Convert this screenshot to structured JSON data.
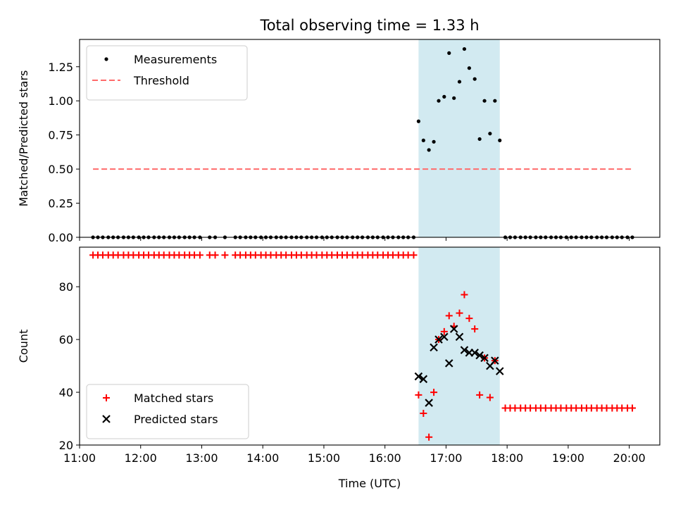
{
  "figure_title": "Total observing time = 1.33 h",
  "colors": {
    "shade": "#add8e6",
    "measurements": "#000000",
    "threshold": "#ff6b6b",
    "matched": "#ff0000",
    "predicted": "#000000"
  },
  "chart_data": [
    {
      "type": "scatter",
      "ylabel": "Matched/Predicted stars",
      "xlabel": "",
      "xlim": [
        11.0,
        20.5
      ],
      "ylim": [
        0,
        1.45
      ],
      "x_ticks": [
        "11:00",
        "12:00",
        "13:00",
        "14:00",
        "15:00",
        "16:00",
        "17:00",
        "18:00",
        "19:00",
        "20:00"
      ],
      "y_ticks": [
        "0.00",
        "0.25",
        "0.50",
        "0.75",
        "1.00",
        "1.25"
      ],
      "shaded_region": [
        16.55,
        17.88
      ],
      "legend_position": "upper-left",
      "series": [
        {
          "name": "Measurements",
          "style": "dot",
          "points": [
            [
              11.22,
              0
            ],
            [
              11.3,
              0
            ],
            [
              11.38,
              0
            ],
            [
              11.47,
              0
            ],
            [
              11.55,
              0
            ],
            [
              11.63,
              0
            ],
            [
              11.72,
              0
            ],
            [
              11.8,
              0
            ],
            [
              11.88,
              0
            ],
            [
              11.97,
              0
            ],
            [
              12.05,
              0
            ],
            [
              12.13,
              0
            ],
            [
              12.22,
              0
            ],
            [
              12.3,
              0
            ],
            [
              12.38,
              0
            ],
            [
              12.47,
              0
            ],
            [
              12.55,
              0
            ],
            [
              12.63,
              0
            ],
            [
              12.72,
              0
            ],
            [
              12.8,
              0
            ],
            [
              12.88,
              0
            ],
            [
              12.97,
              0
            ],
            [
              13.13,
              0
            ],
            [
              13.22,
              0
            ],
            [
              13.38,
              0
            ],
            [
              13.55,
              0
            ],
            [
              13.63,
              0
            ],
            [
              13.72,
              0
            ],
            [
              13.8,
              0
            ],
            [
              13.88,
              0
            ],
            [
              13.97,
              0
            ],
            [
              14.05,
              0
            ],
            [
              14.13,
              0
            ],
            [
              14.22,
              0
            ],
            [
              14.3,
              0
            ],
            [
              14.38,
              0
            ],
            [
              14.47,
              0
            ],
            [
              14.55,
              0
            ],
            [
              14.63,
              0
            ],
            [
              14.72,
              0
            ],
            [
              14.8,
              0
            ],
            [
              14.88,
              0
            ],
            [
              14.97,
              0
            ],
            [
              15.05,
              0
            ],
            [
              15.13,
              0
            ],
            [
              15.22,
              0
            ],
            [
              15.3,
              0
            ],
            [
              15.38,
              0
            ],
            [
              15.47,
              0
            ],
            [
              15.55,
              0
            ],
            [
              15.63,
              0
            ],
            [
              15.72,
              0
            ],
            [
              15.8,
              0
            ],
            [
              15.88,
              0
            ],
            [
              15.97,
              0
            ],
            [
              16.05,
              0
            ],
            [
              16.13,
              0
            ],
            [
              16.22,
              0
            ],
            [
              16.3,
              0
            ],
            [
              16.38,
              0
            ],
            [
              16.47,
              0
            ],
            [
              16.55,
              0.85
            ],
            [
              16.63,
              0.71
            ],
            [
              16.72,
              0.64
            ],
            [
              16.8,
              0.7
            ],
            [
              16.88,
              1.0
            ],
            [
              16.97,
              1.03
            ],
            [
              17.05,
              1.35
            ],
            [
              17.13,
              1.02
            ],
            [
              17.22,
              1.14
            ],
            [
              17.3,
              1.38
            ],
            [
              17.38,
              1.24
            ],
            [
              17.47,
              1.16
            ],
            [
              17.55,
              0.72
            ],
            [
              17.63,
              1.0
            ],
            [
              17.72,
              0.76
            ],
            [
              17.8,
              1.0
            ],
            [
              17.88,
              0.71
            ],
            [
              17.97,
              0
            ],
            [
              18.05,
              0
            ],
            [
              18.13,
              0
            ],
            [
              18.22,
              0
            ],
            [
              18.3,
              0
            ],
            [
              18.38,
              0
            ],
            [
              18.47,
              0
            ],
            [
              18.55,
              0
            ],
            [
              18.63,
              0
            ],
            [
              18.72,
              0
            ],
            [
              18.8,
              0
            ],
            [
              18.88,
              0
            ],
            [
              18.97,
              0
            ],
            [
              19.05,
              0
            ],
            [
              19.13,
              0
            ],
            [
              19.22,
              0
            ],
            [
              19.3,
              0
            ],
            [
              19.38,
              0
            ],
            [
              19.47,
              0
            ],
            [
              19.55,
              0
            ],
            [
              19.63,
              0
            ],
            [
              19.72,
              0
            ],
            [
              19.8,
              0
            ],
            [
              19.88,
              0
            ],
            [
              19.97,
              0
            ],
            [
              20.05,
              0
            ]
          ]
        },
        {
          "name": "Threshold",
          "style": "dashed-line",
          "points": [
            [
              11.22,
              0.5
            ],
            [
              20.05,
              0.5
            ]
          ]
        }
      ]
    },
    {
      "type": "scatter",
      "ylabel": "Count",
      "xlabel": "Time (UTC)",
      "xlim": [
        11.0,
        20.5
      ],
      "ylim": [
        20,
        95
      ],
      "x_ticks": [
        "11:00",
        "12:00",
        "13:00",
        "14:00",
        "15:00",
        "16:00",
        "17:00",
        "18:00",
        "19:00",
        "20:00"
      ],
      "y_ticks": [
        "20",
        "40",
        "60",
        "80"
      ],
      "shaded_region": [
        16.55,
        17.88
      ],
      "legend_position": "lower-left",
      "series": [
        {
          "name": "Matched stars",
          "style": "plus",
          "points": [
            [
              11.22,
              92
            ],
            [
              11.3,
              92
            ],
            [
              11.38,
              92
            ],
            [
              11.47,
              92
            ],
            [
              11.55,
              92
            ],
            [
              11.63,
              92
            ],
            [
              11.72,
              92
            ],
            [
              11.8,
              92
            ],
            [
              11.88,
              92
            ],
            [
              11.97,
              92
            ],
            [
              12.05,
              92
            ],
            [
              12.13,
              92
            ],
            [
              12.22,
              92
            ],
            [
              12.3,
              92
            ],
            [
              12.38,
              92
            ],
            [
              12.47,
              92
            ],
            [
              12.55,
              92
            ],
            [
              12.63,
              92
            ],
            [
              12.72,
              92
            ],
            [
              12.8,
              92
            ],
            [
              12.88,
              92
            ],
            [
              12.97,
              92
            ],
            [
              13.13,
              92
            ],
            [
              13.22,
              92
            ],
            [
              13.38,
              92
            ],
            [
              13.55,
              92
            ],
            [
              13.63,
              92
            ],
            [
              13.72,
              92
            ],
            [
              13.8,
              92
            ],
            [
              13.88,
              92
            ],
            [
              13.97,
              92
            ],
            [
              14.05,
              92
            ],
            [
              14.13,
              92
            ],
            [
              14.22,
              92
            ],
            [
              14.3,
              92
            ],
            [
              14.38,
              92
            ],
            [
              14.47,
              92
            ],
            [
              14.55,
              92
            ],
            [
              14.63,
              92
            ],
            [
              14.72,
              92
            ],
            [
              14.8,
              92
            ],
            [
              14.88,
              92
            ],
            [
              14.97,
              92
            ],
            [
              15.05,
              92
            ],
            [
              15.13,
              92
            ],
            [
              15.22,
              92
            ],
            [
              15.3,
              92
            ],
            [
              15.38,
              92
            ],
            [
              15.47,
              92
            ],
            [
              15.55,
              92
            ],
            [
              15.63,
              92
            ],
            [
              15.72,
              92
            ],
            [
              15.8,
              92
            ],
            [
              15.88,
              92
            ],
            [
              15.97,
              92
            ],
            [
              16.05,
              92
            ],
            [
              16.13,
              92
            ],
            [
              16.22,
              92
            ],
            [
              16.3,
              92
            ],
            [
              16.38,
              92
            ],
            [
              16.47,
              92
            ],
            [
              16.55,
              39
            ],
            [
              16.63,
              32
            ],
            [
              16.72,
              23
            ],
            [
              16.8,
              40
            ],
            [
              16.88,
              60
            ],
            [
              16.97,
              63
            ],
            [
              17.05,
              69
            ],
            [
              17.13,
              65
            ],
            [
              17.22,
              70
            ],
            [
              17.3,
              77
            ],
            [
              17.38,
              68
            ],
            [
              17.47,
              64
            ],
            [
              17.55,
              39
            ],
            [
              17.63,
              53
            ],
            [
              17.72,
              38
            ],
            [
              17.8,
              52
            ],
            [
              17.97,
              34
            ],
            [
              18.05,
              34
            ],
            [
              18.13,
              34
            ],
            [
              18.22,
              34
            ],
            [
              18.3,
              34
            ],
            [
              18.38,
              34
            ],
            [
              18.47,
              34
            ],
            [
              18.55,
              34
            ],
            [
              18.63,
              34
            ],
            [
              18.72,
              34
            ],
            [
              18.8,
              34
            ],
            [
              18.88,
              34
            ],
            [
              18.97,
              34
            ],
            [
              19.05,
              34
            ],
            [
              19.13,
              34
            ],
            [
              19.22,
              34
            ],
            [
              19.3,
              34
            ],
            [
              19.38,
              34
            ],
            [
              19.47,
              34
            ],
            [
              19.55,
              34
            ],
            [
              19.63,
              34
            ],
            [
              19.72,
              34
            ],
            [
              19.8,
              34
            ],
            [
              19.88,
              34
            ],
            [
              19.97,
              34
            ],
            [
              20.05,
              34
            ]
          ]
        },
        {
          "name": "Predicted stars",
          "style": "x",
          "points": [
            [
              16.55,
              46
            ],
            [
              16.63,
              45
            ],
            [
              16.72,
              36
            ],
            [
              16.8,
              57
            ],
            [
              16.88,
              60
            ],
            [
              16.97,
              61
            ],
            [
              17.05,
              51
            ],
            [
              17.13,
              64
            ],
            [
              17.22,
              61
            ],
            [
              17.3,
              56
            ],
            [
              17.38,
              55
            ],
            [
              17.47,
              55
            ],
            [
              17.55,
              54
            ],
            [
              17.63,
              53
            ],
            [
              17.72,
              50
            ],
            [
              17.8,
              52
            ],
            [
              17.88,
              48
            ]
          ]
        }
      ]
    }
  ]
}
